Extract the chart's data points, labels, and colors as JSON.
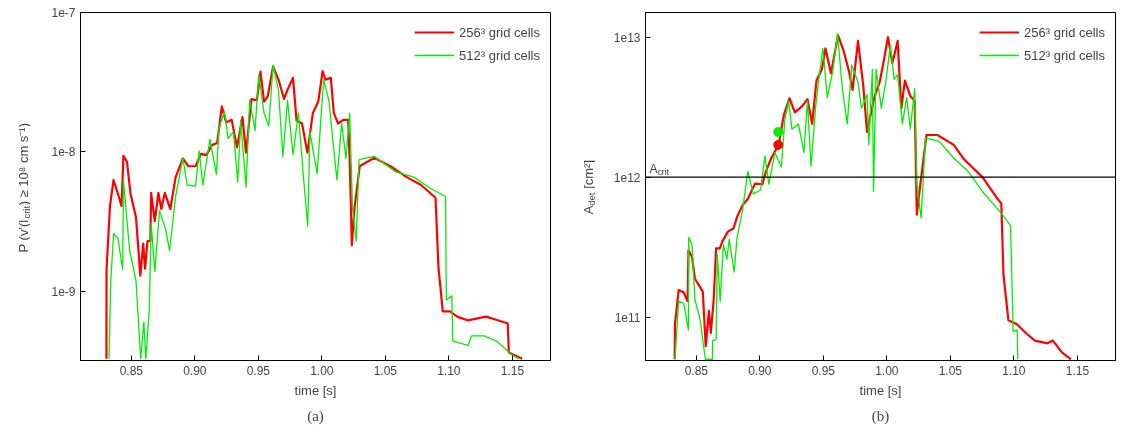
{
  "chart_data": [
    {
      "type": "line",
      "xlabel": "time [s]",
      "ylabel": "P (v'(l$_{crit}$) ≥ 10⁸ cm s⁻¹)",
      "log": "y",
      "grid": false,
      "legend": "top right",
      "line_style": "solid",
      "xlim": [
        0.81,
        1.18
      ],
      "xticks": [
        {
          "value": 0.85,
          "label": "0.85"
        },
        {
          "value": 0.9,
          "label": "0.90"
        },
        {
          "value": 0.95,
          "label": "0.95"
        },
        {
          "value": 1.0,
          "label": "1.00"
        },
        {
          "value": 1.05,
          "label": "1.05"
        },
        {
          "value": 1.1,
          "label": "1.10"
        },
        {
          "value": 1.15,
          "label": "1.15"
        }
      ],
      "ylim": [
        3.2e-10,
        1e-07
      ],
      "yticks": [
        {
          "value": 1e-09,
          "label": "1e-9"
        },
        {
          "value": 1e-08,
          "label": "1e-8"
        },
        {
          "value": 1e-07,
          "label": "1e-7"
        }
      ],
      "annotations": [
        "(a)"
      ],
      "series": [
        {
          "name": "256³ grid cells",
          "color": "#ff0000",
          "x": [
            0.8304,
            0.8305,
            0.8332,
            0.836,
            0.8395,
            0.8423,
            0.8438,
            0.8466,
            0.8494,
            0.8537,
            0.8571,
            0.8594,
            0.8608,
            0.8628,
            0.865,
            0.8656,
            0.8685,
            0.8713,
            0.8736,
            0.8764,
            0.8807,
            0.8849,
            0.8906,
            0.8949,
            0.9006,
            0.9048,
            0.9091,
            0.9134,
            0.9176,
            0.9213,
            0.9247,
            0.929,
            0.9332,
            0.9375,
            0.9403,
            0.9446,
            0.9489,
            0.9517,
            0.9545,
            0.9574,
            0.9616,
            0.9659,
            0.9702,
            0.973,
            0.9773,
            0.9801,
            0.9844,
            0.9886,
            0.9929,
            0.9972,
            1.0006,
            1.0028,
            1.0071,
            1.0094,
            1.0128,
            1.017,
            1.0207,
            1.0219,
            1.0236,
            1.0256,
            1.0298,
            1.0412,
            1.054,
            1.0668,
            1.0781,
            1.0895,
            1.0918,
            1.0952,
            1.1009,
            1.1065,
            1.1151,
            1.1293,
            1.1392,
            1.1463,
            1.1472,
            1.1577
          ],
          "values": [
            3.3e-10,
            1.44e-09,
            4.1e-09,
            6.3e-09,
            5e-09,
            4.1e-09,
            9.4e-09,
            8.5e-09,
            5e-09,
            3.4e-09,
            1.3e-09,
            2.2e-09,
            1.46e-09,
            2.3e-09,
            2.3e-09,
            5.1e-09,
            3.2e-09,
            5.1e-09,
            3.9e-09,
            5.1e-09,
            3.9e-09,
            6.6e-09,
            9e-09,
            7.9e-09,
            7.9e-09,
            9.7e-09,
            9.5e-09,
            1.12e-08,
            1.16e-08,
            2.12e-08,
            1.63e-08,
            1.7e-08,
            1.08e-08,
            1.78e-08,
            9.9e-09,
            2.39e-08,
            2.35e-08,
            3.77e-08,
            2.3e-08,
            2.5e-08,
            4.1e-08,
            3.3e-08,
            2.4e-08,
            2.8e-08,
            3.4e-08,
            1.68e-08,
            1.6e-08,
            9.9e-09,
            1.9e-08,
            2.3e-08,
            3.8e-08,
            3.3e-08,
            3.4e-08,
            1.9e-08,
            1.6e-08,
            1.7e-08,
            1.7e-08,
            9e-09,
            2.15e-09,
            3.9e-09,
            7.9e-09,
            9.1e-09,
            7.9e-09,
            6.6e-09,
            5.8e-09,
            4.7e-09,
            1.48e-09,
            7.2e-10,
            7.2e-10,
            6.6e-10,
            6.2e-10,
            6.6e-10,
            6.2e-10,
            5.9e-10,
            3.65e-10,
            3.3e-10
          ]
        },
        {
          "name": "512³ grid cells",
          "color": "#00ee00",
          "x": [
            0.8324,
            0.8338,
            0.8361,
            0.8395,
            0.8432,
            0.8438,
            0.8486,
            0.8537,
            0.8574,
            0.8599,
            0.8614,
            0.8642,
            0.8656,
            0.8685,
            0.8722,
            0.877,
            0.8801,
            0.8849,
            0.8906,
            0.894,
            0.9006,
            0.9034,
            0.9063,
            0.9119,
            0.917,
            0.919,
            0.9233,
            0.9261,
            0.9304,
            0.9338,
            0.9361,
            0.9403,
            0.9432,
            0.9474,
            0.9503,
            0.9545,
            0.9582,
            0.9616,
            0.9659,
            0.9693,
            0.973,
            0.9773,
            0.9815,
            0.9858,
            0.9889,
            0.9906,
            0.9963,
            1.0014,
            1.0057,
            1.0085,
            1.0119,
            1.0156,
            1.019,
            1.0219,
            1.0241,
            1.027,
            1.0293,
            1.0412,
            1.0582,
            1.0724,
            1.0852,
            1.0974,
            1.098,
            1.1023,
            1.1031,
            1.1151,
            1.1179,
            1.1278,
            1.1378,
            1.1491,
            1.1548
          ],
          "values": [
            3.3e-10,
            1.19e-09,
            2.6e-09,
            2.4e-09,
            1.44e-09,
            6.3e-09,
            2e-09,
            1.19e-09,
            3.3e-10,
            6e-10,
            3.3e-10,
            7.5e-10,
            3.1e-09,
            1.39e-09,
            3.8e-09,
            2.8e-09,
            1.96e-09,
            4.8e-09,
            9e-09,
            5.8e-09,
            5.7e-09,
            1.02e-08,
            5.8e-09,
            1.23e-08,
            6.9e-09,
            1.48e-08,
            1.96e-08,
            1.25e-08,
            1.39e-08,
            6.1e-09,
            1.68e-08,
            5.6e-09,
            2.35e-08,
            1.43e-08,
            3.6e-08,
            1.9e-08,
            1.53e-08,
            4.2e-08,
            2.75e-08,
            9.3e-09,
            2.35e-08,
            9.6e-09,
            1.9e-08,
            6.2e-09,
            2.94e-09,
            1.39e-08,
            7e-09,
            3.3e-08,
            2.3e-08,
            1.25e-08,
            6.3e-09,
            1.6e-08,
            9e-09,
            1.9e-08,
            4e-09,
            2.3e-09,
            8.8e-09,
            9.3e-09,
            7.2e-09,
            6.6e-09,
            5.5e-09,
            4.8e-09,
            8.7e-10,
            9.3e-10,
            4.4e-10,
            4.1e-10,
            4.8e-10,
            4.8e-10,
            4.4e-10,
            3.55e-10,
            3.3e-10
          ]
        }
      ]
    },
    {
      "type": "line",
      "xlabel": "time [s]",
      "ylabel": "A$_{det}$ [cm²]",
      "log": "y",
      "grid": false,
      "legend": "top right",
      "line_style": "solid",
      "xlim": [
        0.81,
        1.18
      ],
      "xticks": [
        {
          "value": 0.85,
          "label": "0.85"
        },
        {
          "value": 0.9,
          "label": "0.90"
        },
        {
          "value": 0.95,
          "label": "0.95"
        },
        {
          "value": 1.0,
          "label": "1.00"
        },
        {
          "value": 1.05,
          "label": "1.05"
        },
        {
          "value": 1.1,
          "label": "1.10"
        },
        {
          "value": 1.15,
          "label": "1.15"
        }
      ],
      "ylim": [
        49000000000.0,
        15000000000000.0
      ],
      "yticks": [
        {
          "value": 100000000000.0,
          "label": "1e11"
        },
        {
          "value": 1000000000000.0,
          "label": "1e12"
        },
        {
          "value": 10000000000000.0,
          "label": "1e13"
        }
      ],
      "ref_lines": [
        {
          "axis": "y",
          "value": 1000000000000.0,
          "label": "A$_{crit}$",
          "color": "#000000"
        }
      ],
      "annotations": [
        "(b)"
      ],
      "series": [
        {
          "name": "256³ grid cells",
          "color": "#ff0000",
          "x": [
            0.833,
            0.8332,
            0.8361,
            0.8401,
            0.8432,
            0.8438,
            0.8466,
            0.8489,
            0.8551,
            0.8574,
            0.8599,
            0.8614,
            0.8636,
            0.8656,
            0.8685,
            0.8707,
            0.875,
            0.8793,
            0.8821,
            0.8864,
            0.8906,
            0.8963,
            0.902,
            0.9048,
            0.9091,
            0.9148,
            0.919,
            0.9233,
            0.9276,
            0.9332,
            0.9375,
            0.9412,
            0.9446,
            0.9489,
            0.9517,
            0.956,
            0.9616,
            0.9659,
            0.9702,
            0.973,
            0.9773,
            0.9815,
            0.9844,
            0.9901,
            0.9943,
            0.9972,
            1.0009,
            1.0043,
            1.0085,
            1.0114,
            1.0142,
            1.0185,
            1.0219,
            1.0236,
            1.0264,
            1.0312,
            1.0398,
            1.0526,
            1.0611,
            1.0753,
            1.0866,
            1.0901,
            1.0918,
            1.0957,
            1.1023,
            1.1094,
            1.1165,
            1.1264,
            1.1307,
            1.1378,
            1.1449
          ],
          "values": [
            50000000000.0,
            89000000000.0,
            156000000000.0,
            150000000000.0,
            130000000000.0,
            300000000000.0,
            270000000000.0,
            188000000000.0,
            152000000000.0,
            62000000000.0,
            111000000000.0,
            77000000000.0,
            130000000000.0,
            310000000000.0,
            310000000000.0,
            350000000000.0,
            410000000000.0,
            430000000000.0,
            520000000000.0,
            630000000000.0,
            700000000000.0,
            900000000000.0,
            890000000000.0,
            1100000000000.0,
            1370000000000.0,
            1700000000000.0,
            2800000000000.0,
            3660000000000.0,
            2900000000000.0,
            3200000000000.0,
            3600000000000.0,
            2400000000000.0,
            4900000000000.0,
            5900000000000.0,
            8300000000000.0,
            5500000000000.0,
            10300000000000.0,
            8000000000000.0,
            5700000000000.0,
            4200000000000.0,
            9400000000000.0,
            4450000000000.0,
            2100000000000.0,
            3700000000000.0,
            4750000000000.0,
            6500000000000.0,
            10000000000000.0,
            6500000000000.0,
            9400000000000.0,
            3100000000000.0,
            4900000000000.0,
            3800000000000.0,
            3500000000000.0,
            540000000000.0,
            890000000000.0,
            2000000000000.0,
            2000000000000.0,
            1700000000000.0,
            1330000000000.0,
            1000000000000.0,
            710000000000.0,
            650000000000.0,
            200000000000.0,
            95000000000.0,
            89000000000.0,
            77000000000.0,
            68000000000.0,
            65000000000.0,
            68000000000.0,
            56000000000.0,
            50000000000.0
          ]
        },
        {
          "name": "512³ grid cells",
          "color": "#00ee00",
          "x": [
            0.8332,
            0.8361,
            0.8401,
            0.8438,
            0.844,
            0.8466,
            0.8489,
            0.8531,
            0.8571,
            0.8627,
            0.8628,
            0.8656,
            0.8665,
            0.8688,
            0.8713,
            0.8741,
            0.8759,
            0.8798,
            0.8821,
            0.8864,
            0.8906,
            0.8949,
            0.9006,
            0.904,
            0.9071,
            0.9119,
            0.917,
            0.9196,
            0.9227,
            0.9253,
            0.9304,
            0.9347,
            0.9375,
            0.9403,
            0.944,
            0.9474,
            0.9497,
            0.9531,
            0.9574,
            0.9611,
            0.9651,
            0.9688,
            0.9724,
            0.9773,
            0.9801,
            0.9844,
            0.9858,
            0.9886,
            0.9895,
            0.9915,
            0.9957,
            0.9991,
            1.0028,
            1.0057,
            1.0085,
            1.0122,
            1.0156,
            1.0185,
            1.0219,
            1.0236,
            1.027,
            1.0304,
            1.0412,
            1.0526,
            1.0639,
            1.0753,
            1.0895,
            1.0974,
            1.0994,
            1.1026,
            1.1031
          ],
          "values": [
            50000000000.0,
            130000000000.0,
            125000000000.0,
            81000000000.0,
            370000000000.0,
            330000000000.0,
            134000000000.0,
            95000000000.0,
            50000000000.0,
            50000000000.0,
            68000000000.0,
            69000000000.0,
            280000000000.0,
            130000000000.0,
            330000000000.0,
            260000000000.0,
            360000000000.0,
            210000000000.0,
            370000000000.0,
            580000000000.0,
            1100000000000.0,
            760000000000.0,
            810000000000.0,
            1420000000000.0,
            890000000000.0,
            1500000000000.0,
            1180000000000.0,
            2550000000000.0,
            3500000000000.0,
            2200000000000.0,
            2400000000000.0,
            1500000000000.0,
            3500000000000.0,
            1200000000000.0,
            3200000000000.0,
            5900000000000.0,
            8300000000000.0,
            3700000000000.0,
            5700000000000.0,
            10600000000000.0,
            4200000000000.0,
            2400000000000.0,
            6300000000000.0,
            4750000000000.0,
            3100000000000.0,
            3900000000000.0,
            1700000000000.0,
            5900000000000.0,
            790000000000.0,
            5900000000000.0,
            3100000000000.0,
            4750000000000.0,
            8800000000000.0,
            5000000000000.0,
            5400000000000.0,
            2400000000000.0,
            3700000000000.0,
            2200000000000.0,
            4300000000000.0,
            890000000000.0,
            510000000000.0,
            1900000000000.0,
            1800000000000.0,
            1370000000000.0,
            1100000000000.0,
            790000000000.0,
            560000000000.0,
            450000000000.0,
            79000000000.0,
            81000000000.0,
            50000000000.0
          ]
        },
        {
          "type": "scatter",
          "marker": "circle",
          "color": "#00ee00",
          "x": [
            0.9145
          ],
          "values": [
            2100000000000.0
          ]
        },
        {
          "type": "scatter",
          "marker": "circle",
          "color": "#ff0000",
          "x": [
            0.9145
          ],
          "values": [
            1700000000000.0
          ]
        }
      ]
    }
  ]
}
